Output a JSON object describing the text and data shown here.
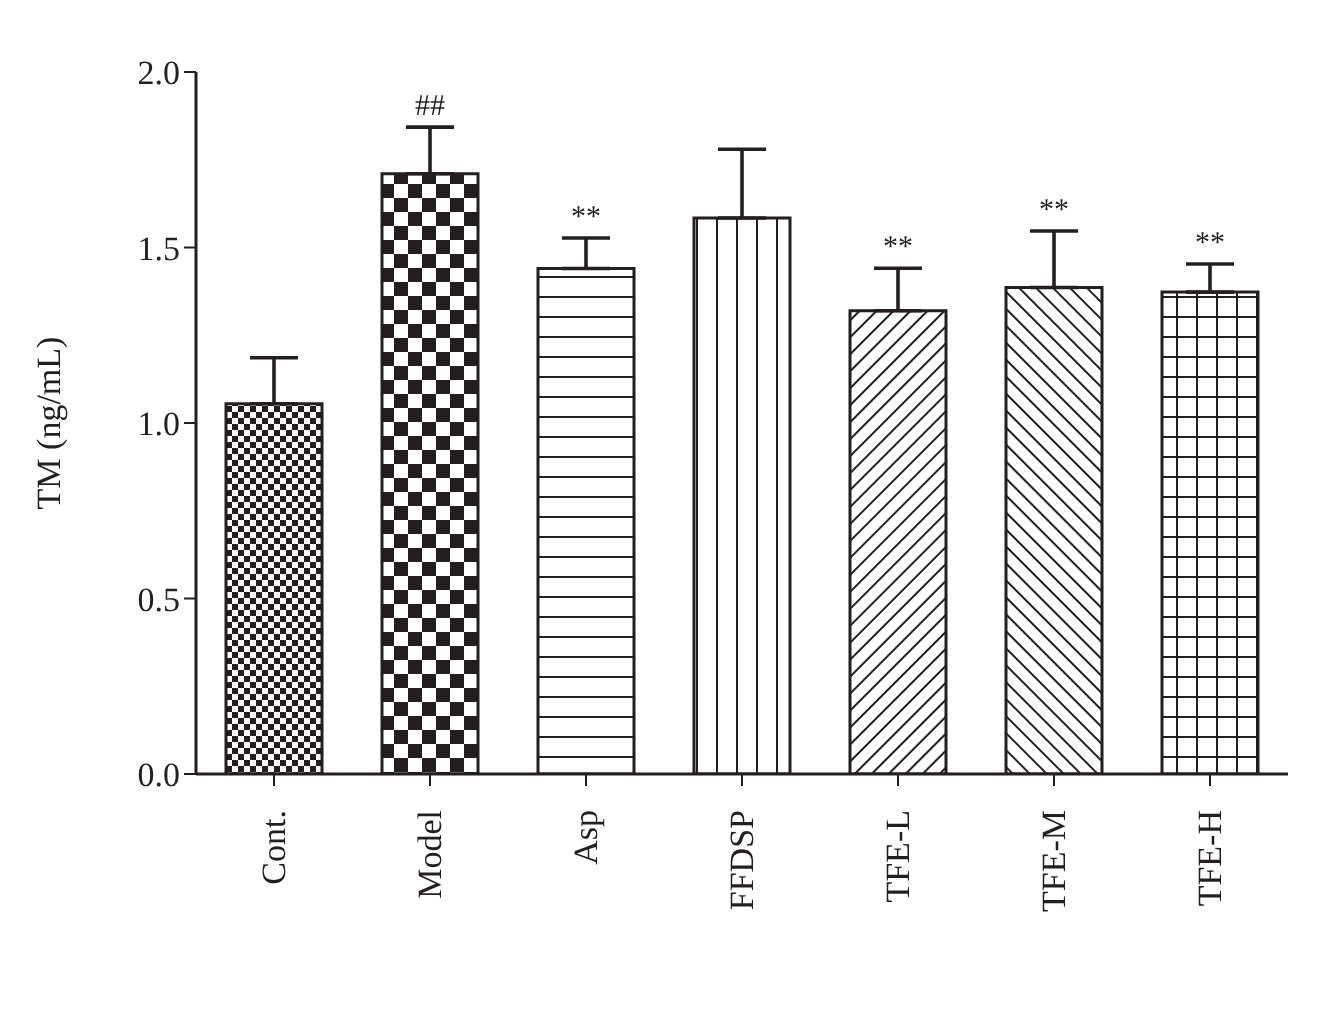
{
  "chart_data": {
    "type": "bar",
    "ylabel": "TM (ng/mL)",
    "categories": [
      "Cont.",
      "Model",
      "Asp",
      "FFDSP",
      "TFE-L",
      "TFE-M",
      "TFE-H"
    ],
    "values": [
      1.055,
      1.71,
      1.44,
      1.584,
      1.32,
      1.386,
      1.373
    ],
    "errors": [
      [
        1.055,
        1.186
      ],
      [
        1.71,
        1.843
      ],
      [
        1.44,
        1.527
      ],
      [
        1.584,
        1.78
      ],
      [
        1.32,
        1.441
      ],
      [
        1.386,
        1.547
      ],
      [
        1.373,
        1.453
      ]
    ],
    "color": "#231f20",
    "ylim": [
      0,
      2
    ],
    "yticks": [
      {
        "value": 0,
        "label": "0.0"
      },
      {
        "value": 0.5,
        "label": "0.5"
      },
      {
        "value": 1,
        "label": "1.0"
      },
      {
        "value": 1.5,
        "label": "1.5"
      },
      {
        "value": 2,
        "label": "2.0"
      }
    ],
    "grid": false,
    "legend": false,
    "annotations": [
      {
        "text": "##",
        "x": "Model",
        "y": 1.843
      },
      {
        "text": "**",
        "x": "Asp",
        "y": 1.527
      },
      {
        "text": "**",
        "x": "TFE-L",
        "y": 1.441
      },
      {
        "text": "**",
        "x": "TFE-M",
        "y": 1.547
      },
      {
        "text": "**",
        "x": "TFE-H",
        "y": 1.453
      }
    ]
  }
}
